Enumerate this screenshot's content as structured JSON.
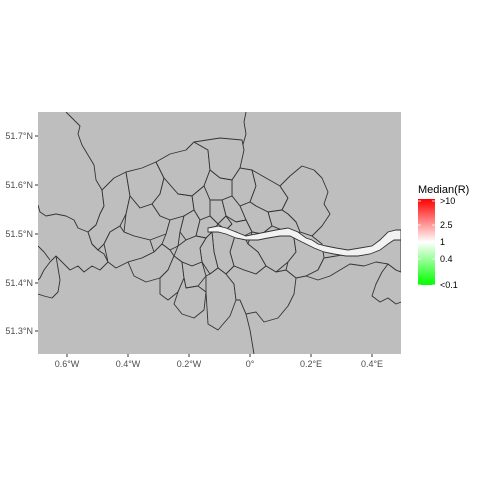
{
  "map": {
    "colors": {
      "panel_background": "#bebebe",
      "region_fill": "#bebebe",
      "border": "#333333",
      "river_fill": "#f2f2f2",
      "legend_high": "#ff0000",
      "legend_mid": "#ffffff",
      "legend_low": "#00ff00"
    },
    "x_axis": {
      "ticks": [
        {
          "label": "0.6°W"
        },
        {
          "label": "0.4°W"
        },
        {
          "label": "0.2°W"
        },
        {
          "label": "0°"
        },
        {
          "label": "0.2°E"
        },
        {
          "label": "0.4°E"
        }
      ]
    },
    "y_axis": {
      "ticks": [
        {
          "label": "51.7°N"
        },
        {
          "label": "51.6°N"
        },
        {
          "label": "51.5°N"
        },
        {
          "label": "51.4°N"
        },
        {
          "label": "51.3°N"
        }
      ]
    },
    "legend": {
      "title": "Median(R)",
      "placement": "right",
      "labels": [
        ">10",
        "2.5",
        "1",
        "0.4",
        "<0.1"
      ]
    }
  }
}
